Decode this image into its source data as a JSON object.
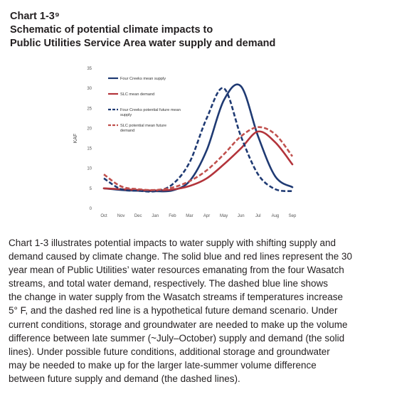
{
  "header": {
    "chart_number": "Chart 1-3⁹",
    "title_line_1": "Schematic of potential climate impacts to",
    "title_line_2": "Public Utilities Service Area water supply and demand"
  },
  "chart_data": {
    "type": "line",
    "ylabel": "KAF",
    "xlabel": "",
    "ylim": [
      0,
      35
    ],
    "yticks": [
      "0",
      "5",
      "10",
      "15",
      "20",
      "25",
      "30",
      "35"
    ],
    "categories": [
      "Oct",
      "Nov",
      "Dec",
      "Jan",
      "Feb",
      "Mar",
      "Apr",
      "May",
      "Jun",
      "Jul",
      "Aug",
      "Sep"
    ],
    "grid": false,
    "legend_position": "top-left",
    "series": [
      {
        "name": "Four Creeks mean supply",
        "color": "#1f3a73",
        "dash": false,
        "values": [
          5.0,
          4.6,
          4.4,
          4.3,
          4.5,
          6.8,
          14.5,
          27.0,
          30.5,
          18.0,
          8.0,
          5.3
        ]
      },
      {
        "name": "SLC mean demand",
        "color": "#b3343b",
        "dash": false,
        "values": [
          5.0,
          4.8,
          4.6,
          4.5,
          4.7,
          5.6,
          7.5,
          11.0,
          15.0,
          19.2,
          16.5,
          11.0
        ]
      },
      {
        "name": "Four Creeks potential future mean supply",
        "color": "#1f3a73",
        "dash": true,
        "values": [
          7.5,
          4.8,
          4.4,
          4.3,
          6.0,
          11.5,
          22.5,
          30.0,
          18.0,
          8.5,
          4.8,
          4.3
        ]
      },
      {
        "name": "SLC potential mean future demand",
        "color": "#c0504d",
        "dash": true,
        "values": [
          8.5,
          5.5,
          4.8,
          4.6,
          5.2,
          6.8,
          9.5,
          13.5,
          18.0,
          20.3,
          18.5,
          13.0
        ]
      }
    ]
  },
  "body_lines": [
    "Chart 1-3 illustrates potential impacts to water supply with shifting supply and",
    "demand caused by climate change.  The solid blue and red lines represent the 30",
    "year mean of Public Utilities’ water resources emanating from the four Wasatch",
    "streams, and total water demand, respectively. The dashed blue line shows",
    "the change in water supply from the Wasatch streams if temperatures increase",
    "5° F, and the dashed red line is a hypothetical future demand scenario. Under",
    "current conditions, storage and groundwater are needed to make up the volume",
    "difference between late summer (~July–October) supply and demand (the solid",
    "lines). Under possible future conditions, additional storage and groundwater",
    "may be needed to make up for the larger late-summer volume difference",
    "between future supply and demand (the dashed lines)."
  ]
}
